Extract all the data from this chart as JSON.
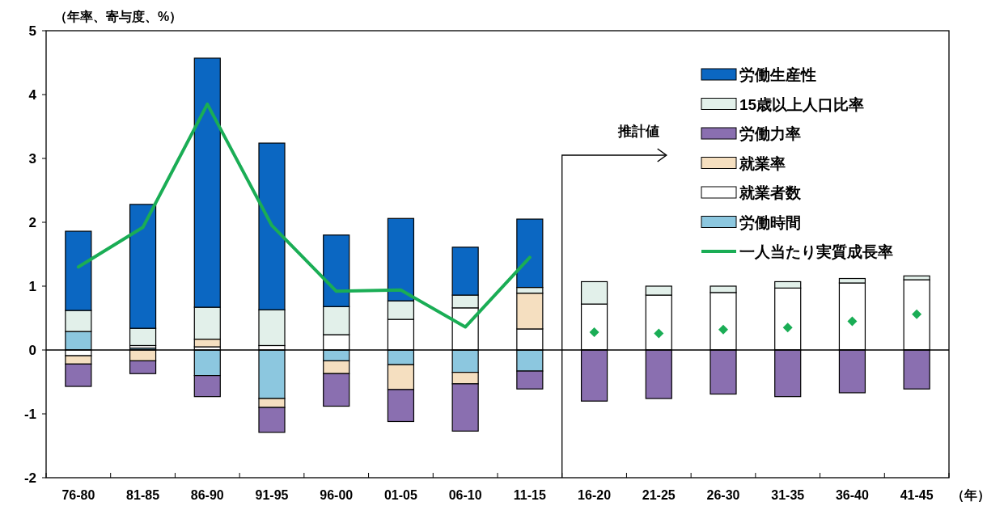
{
  "chart_data": {
    "type": "bar",
    "stacked": true,
    "ylabel": "（年率、寄与度、%）",
    "xlabel": "（年）",
    "categories": [
      "76-80",
      "81-85",
      "86-90",
      "91-95",
      "96-00",
      "01-05",
      "06-10",
      "11-15",
      "16-20",
      "21-25",
      "26-30",
      "31-35",
      "36-40",
      "41-45"
    ],
    "ylim": [
      -2,
      5
    ],
    "yticks": [
      -2,
      -1,
      0,
      1,
      2,
      3,
      4,
      5
    ],
    "ref_lines": [
      {
        "axis": "y",
        "value": 0,
        "color": "#000000"
      }
    ],
    "legend": "top right",
    "annotations": [
      "推計値"
    ],
    "series": [
      {
        "name": "労働時間",
        "color": "#8cc7df",
        "values": [
          0.29,
          0.03,
          -0.4,
          -0.76,
          -0.17,
          -0.23,
          -0.35,
          -0.33,
          null,
          null,
          null,
          null,
          null,
          null
        ]
      },
      {
        "name": "就業者数",
        "color": "#ffffff",
        "values": [
          -0.09,
          0.04,
          0.05,
          0.07,
          0.24,
          0.48,
          0.66,
          0.33,
          0.72,
          0.86,
          0.9,
          0.97,
          1.05,
          1.1
        ]
      },
      {
        "name": "就業率",
        "color": "#f5dfc0",
        "values": [
          -0.13,
          -0.17,
          0.12,
          -0.14,
          -0.2,
          -0.39,
          -0.18,
          0.56,
          null,
          null,
          null,
          null,
          null,
          null
        ]
      },
      {
        "name": "労働力率",
        "color": "#8a6fb0",
        "values": [
          -0.35,
          -0.2,
          -0.33,
          -0.39,
          -0.51,
          -0.5,
          -0.74,
          -0.28,
          -0.8,
          -0.76,
          -0.69,
          -0.73,
          -0.67,
          -0.61
        ]
      },
      {
        "name": "15歳以上人口比率",
        "color": "#e2f0ea",
        "values": [
          0.33,
          0.27,
          0.5,
          0.56,
          0.44,
          0.29,
          0.2,
          0.09,
          0.35,
          0.14,
          0.1,
          0.1,
          0.07,
          0.06
        ]
      },
      {
        "name": "労働生産性",
        "color": "#0b67c2",
        "values": [
          1.24,
          1.94,
          3.9,
          2.61,
          1.12,
          1.29,
          0.75,
          1.07,
          null,
          null,
          null,
          null,
          null,
          null
        ]
      },
      {
        "name": "一人当たり実質成長率",
        "type": "line",
        "color": "#1aad55",
        "values": [
          1.3,
          1.92,
          3.85,
          1.95,
          0.92,
          0.94,
          0.36,
          1.45,
          null,
          null,
          null,
          null,
          null,
          null
        ]
      },
      {
        "type": "scatter",
        "marker": "diamond",
        "color": "#1aad55",
        "values": [
          null,
          null,
          null,
          null,
          null,
          null,
          null,
          null,
          0.28,
          0.26,
          0.32,
          0.35,
          0.45,
          0.56
        ]
      }
    ]
  }
}
